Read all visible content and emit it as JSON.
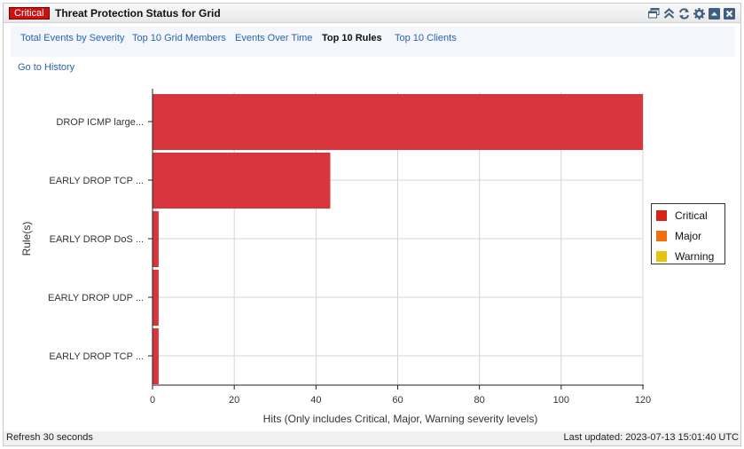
{
  "header": {
    "badge": "Critical",
    "title": "Threat Protection Status for Grid",
    "tools": [
      "windows-icon",
      "collapse-up-icon",
      "refresh-icon",
      "gear-icon",
      "minimize-icon",
      "close-icon"
    ]
  },
  "tabs": [
    {
      "label": "Total Events by Severity",
      "active": false
    },
    {
      "label": "Top 10 Grid Members",
      "active": false
    },
    {
      "label": "Events Over Time",
      "active": false
    },
    {
      "label": "Top 10 Rules",
      "active": true
    },
    {
      "label": "Top 10 Clients",
      "active": false
    }
  ],
  "history_link": "Go to History",
  "chart_data": {
    "type": "bar",
    "orientation": "horizontal",
    "categories": [
      "DROP ICMP large...",
      "EARLY DROP TCP ...",
      "EARLY DROP DoS ...",
      "EARLY DROP UDP ...",
      "EARLY DROP TCP ..."
    ],
    "series": [
      {
        "name": "Critical",
        "values": [
          120,
          43.5,
          1.5,
          1.5,
          1.5
        ]
      }
    ],
    "xlabel": "Hits (Only includes Critical, Major, Warning severity levels)",
    "ylabel": "Rule(s)",
    "xlim": [
      0,
      120
    ],
    "xticks": [
      0,
      20,
      40,
      60,
      80,
      100,
      120
    ],
    "grid": true,
    "legend_position": "right",
    "colors": {
      "bar": "#d9353f"
    }
  },
  "legend": [
    {
      "label": "Critical",
      "color": "#d42419"
    },
    {
      "label": "Major",
      "color": "#f07010"
    },
    {
      "label": "Warning",
      "color": "#e6c414"
    }
  ],
  "footer": {
    "refresh": "Refresh 30 seconds",
    "updated": "Last updated: 2023-07-13 15:01:40 UTC"
  }
}
